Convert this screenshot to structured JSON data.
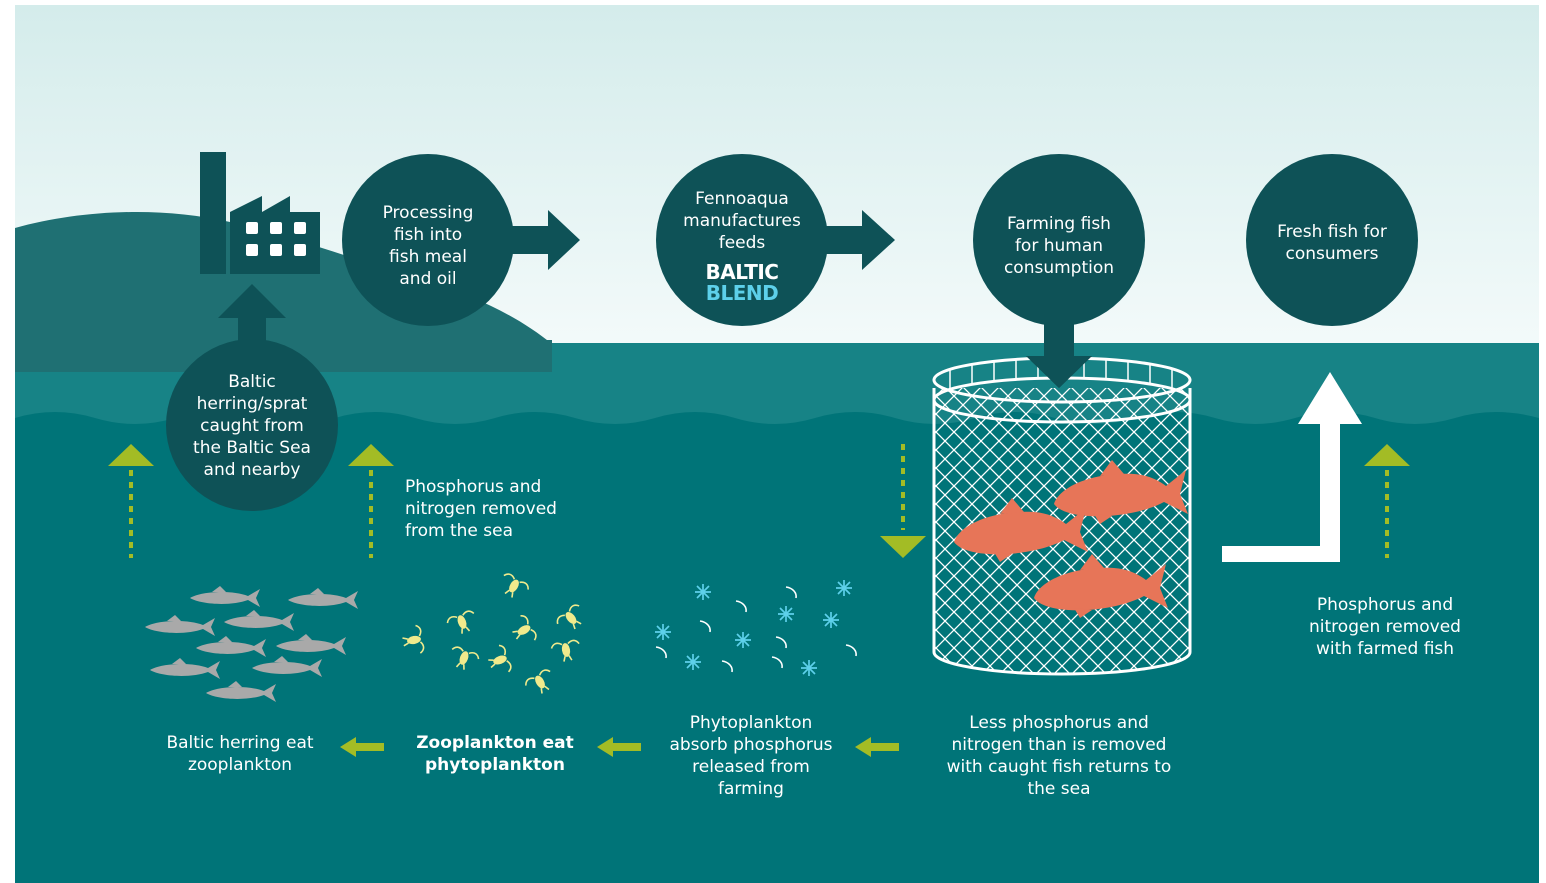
{
  "colors": {
    "sky_top": "#d4eceb",
    "sky_bottom": "#f3fafa",
    "land": "#1f7073",
    "sea_surface": "#178386",
    "sea_deep": "#007478",
    "node": "#0e5257",
    "dark_arrow": "#0e5257",
    "green": "#a3bc25",
    "salmon": "#e77558",
    "herring": "#a9a9a9",
    "zooplankton": "#f0ea8c",
    "phytoplankton": "#5dd0ea",
    "brand_light": "#5dd0ea"
  },
  "nodes": {
    "processing": "Processing\nfish into\nfish meal\nand oil",
    "fennoaqua": "Fennoaqua\nmanufactures\nfeeds",
    "farming": "Farming fish\nfor human\nconsumption",
    "fresh": "Fresh fish for\nconsumers",
    "caught": "Baltic\nherring/sprat\ncaught from\nthe Baltic Sea\nand nearby"
  },
  "brand": {
    "line1": "BALTIC",
    "line2": "BLEND"
  },
  "labels": {
    "removed_sea": "Phosphorus and\nnitrogen removed\nfrom the sea",
    "removed_farmed": "Phosphorus and\nnitrogen removed\nwith farmed fish",
    "herring_eat": "Baltic herring eat\nzooplankton",
    "zoo_eat": "Zooplankton eat\nphytoplankton",
    "phyto_absorb": "Phytoplankton\nabsorb phosphorus\nreleased from\nfarming",
    "less_returns": "Less phosphorus and\nnitrogen than is removed\nwith caught fish returns to\nthe sea"
  },
  "icons": [
    "factory-icon",
    "fish-cage-icon",
    "salmon-icon",
    "herring-icon",
    "zooplankton-icon",
    "phytoplankton-icon"
  ]
}
